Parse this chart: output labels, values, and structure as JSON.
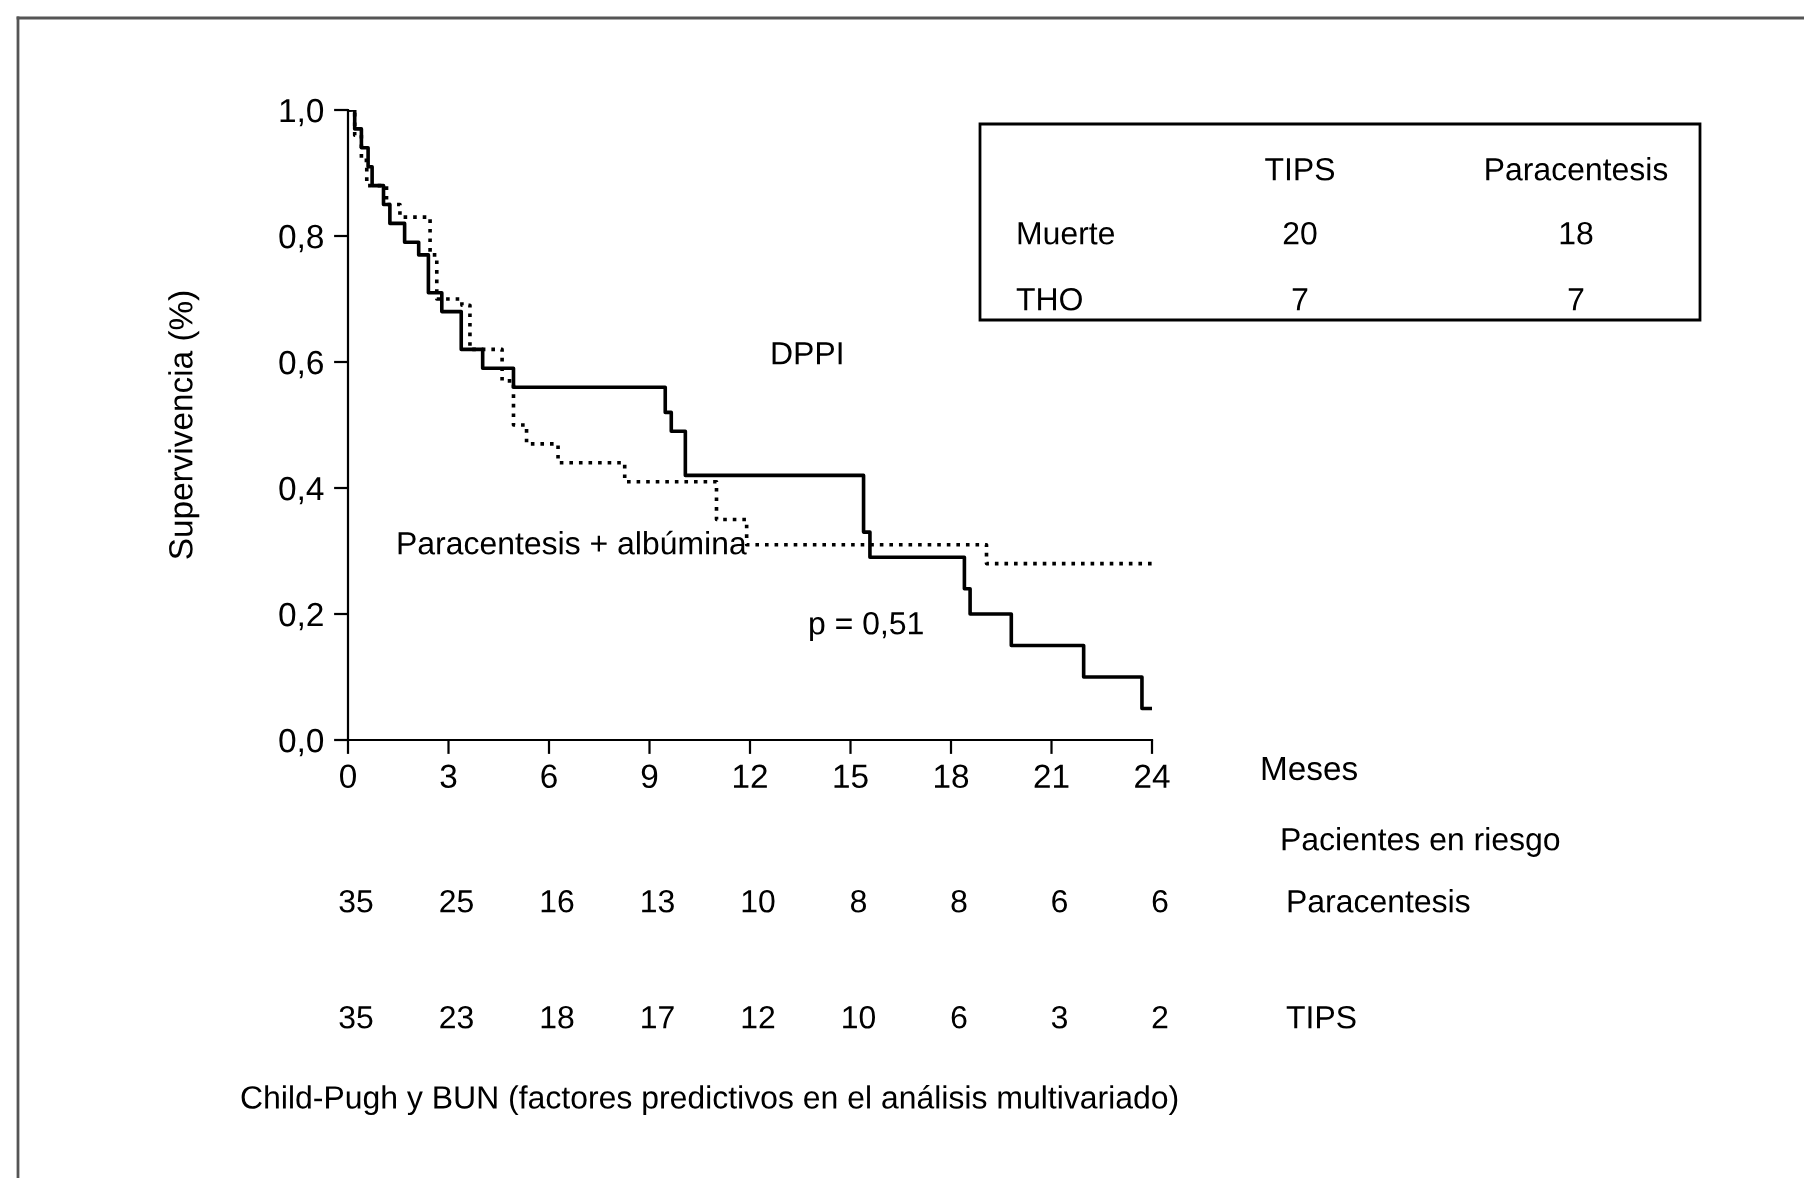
{
  "chart_data": {
    "type": "step",
    "ylabel": "Supervivencia (%)",
    "xlabel": "Meses",
    "xlim": [
      0,
      24
    ],
    "xticks": [
      0,
      3,
      6,
      9,
      12,
      15,
      18,
      21,
      24
    ],
    "ylim": [
      0,
      1
    ],
    "yticks": [
      {
        "value": 0,
        "label": "0,0"
      },
      {
        "value": 0.2,
        "label": "0,2"
      },
      {
        "value": 0.4,
        "label": "0,4"
      },
      {
        "value": 0.6,
        "label": "0,6"
      },
      {
        "value": 0.8,
        "label": "0,8"
      },
      {
        "value": 1,
        "label": "1,0"
      }
    ],
    "grid": false,
    "marker": "none",
    "series": [
      {
        "color": "#000000",
        "line_style": "solid",
        "x": [
          0,
          0.2,
          0.4,
          0.6,
          0.72,
          1.06,
          1.25,
          1.69,
          2.11,
          2.4,
          2.8,
          3.38,
          4.02,
          4.94,
          9.47,
          9.65,
          10.07,
          15.39,
          15.58,
          18.4,
          18.57,
          19.8,
          21.96,
          23.7,
          24
        ],
        "values": [
          1.0,
          0.97,
          0.94,
          0.91,
          0.88,
          0.85,
          0.82,
          0.79,
          0.77,
          0.71,
          0.68,
          0.62,
          0.59,
          0.56,
          0.52,
          0.49,
          0.42,
          0.33,
          0.29,
          0.24,
          0.2,
          0.15,
          0.1,
          0.05,
          0.05
        ]
      },
      {
        "color": "#000000",
        "line_style": "dotted",
        "x": [
          0,
          0.2,
          0.4,
          0.56,
          1.15,
          1.55,
          2.45,
          2.65,
          3.4,
          3.64,
          4.6,
          4.94,
          5.33,
          6.27,
          8.26,
          11.0,
          11.9,
          19.06,
          24
        ],
        "values": [
          1.0,
          0.96,
          0.92,
          0.88,
          0.85,
          0.83,
          0.77,
          0.7,
          0.69,
          0.62,
          0.57,
          0.5,
          0.47,
          0.44,
          0.41,
          0.35,
          0.31,
          0.28,
          0.28
        ]
      }
    ],
    "annotations": [
      "DPPI",
      "Paracentesis + albúmina",
      "p = 0,51",
      "TIPS",
      "Paracentesis",
      "Muerte",
      "20",
      "18",
      "THO",
      "7",
      "7",
      "Pacientes en riesgo",
      "Paracentesis",
      "35",
      "25",
      "16",
      "13",
      "10",
      "8",
      "8",
      "6",
      "6",
      "TIPS",
      "35",
      "23",
      "18",
      "17",
      "12",
      "10",
      "6",
      "3",
      "2",
      "Child-Pugh y BUN (factores predictivos en el análisis multivariado)"
    ]
  }
}
